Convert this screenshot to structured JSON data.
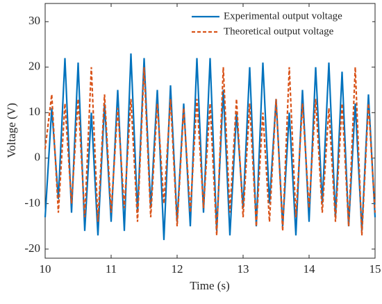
{
  "chart_data": {
    "type": "line",
    "x_label": "Time (s)",
    "y_label": "Voltage (V)",
    "x": [
      10.0,
      10.1,
      10.2,
      10.3,
      10.4,
      10.5,
      10.6,
      10.7,
      10.8,
      10.9,
      11.0,
      11.1,
      11.2,
      11.3,
      11.4,
      11.5,
      11.6,
      11.7,
      11.8,
      11.9,
      12.0,
      12.1,
      12.2,
      12.3,
      12.4,
      12.5,
      12.6,
      12.7,
      12.8,
      12.9,
      13.0,
      13.1,
      13.2,
      13.3,
      13.4,
      13.5,
      13.6,
      13.7,
      13.8,
      13.9,
      14.0,
      14.1,
      14.2,
      14.3,
      14.4,
      14.5,
      14.6,
      14.7,
      14.8,
      14.9,
      15.0
    ],
    "series": [
      {
        "name": "Experimental output voltage",
        "color": "#0072bd",
        "dash": false,
        "values": [
          -13,
          11,
          -9,
          22,
          -12,
          21,
          -16,
          10,
          -17,
          12,
          -14,
          15,
          -16,
          23,
          -12,
          22,
          -11,
          15,
          -18,
          16,
          -14,
          12,
          -15,
          22,
          -12,
          22,
          -16,
          15,
          -17,
          10,
          -11,
          20,
          -15,
          21,
          -10,
          13,
          -15,
          10,
          -17,
          15,
          -14,
          20,
          -10,
          21,
          -13,
          19,
          -15,
          12,
          -16,
          14,
          -13
        ]
      },
      {
        "name": "Theoretical output voltage",
        "color": "#d95319",
        "dash": true,
        "values": [
          2,
          14,
          -12,
          12,
          -10,
          13,
          -13,
          20,
          -14,
          14,
          -12,
          11,
          -11,
          13,
          -14,
          20,
          -13,
          12,
          -10,
          13,
          -15,
          11,
          -12,
          13,
          -11,
          12,
          -17,
          20,
          -12,
          13,
          -13,
          12,
          -15,
          10,
          -14,
          13,
          -16,
          20,
          -13,
          12,
          -11,
          13,
          -12,
          11,
          -14,
          12,
          -15,
          20,
          -17,
          12,
          -12
        ]
      }
    ],
    "xlim": [
      10,
      15
    ],
    "xticks": [
      10,
      11,
      12,
      13,
      14,
      15
    ],
    "ylim": [
      -22,
      34
    ],
    "yticks": [
      -20,
      -10,
      0,
      10,
      20,
      30
    ],
    "legend": "top-right"
  }
}
